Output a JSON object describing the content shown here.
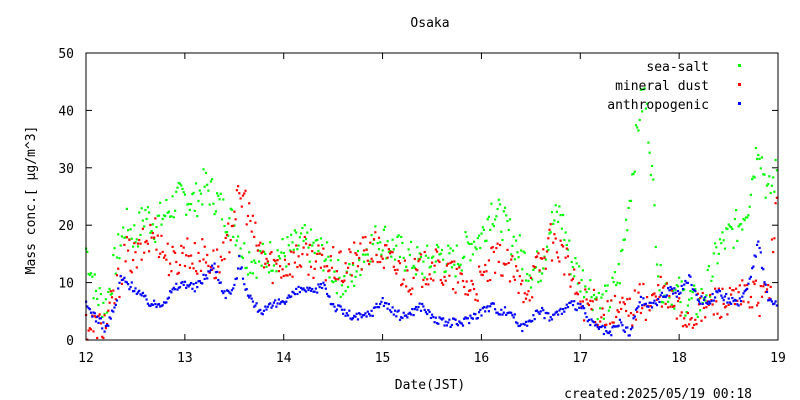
{
  "chart_data": {
    "type": "scatter",
    "title": "Osaka",
    "xlabel": "Date(JST)",
    "ylabel": "Mass conc.[ μg/m^3]",
    "footer": "created:2025/05/19 00:18",
    "xlim": [
      12,
      19
    ],
    "ylim": [
      0,
      50
    ],
    "x_ticks": [
      12,
      13,
      14,
      15,
      16,
      17,
      18,
      19
    ],
    "y_ticks": [
      0,
      10,
      20,
      30,
      40,
      50
    ],
    "grid": false,
    "legend_position": "top-right",
    "series": [
      {
        "name": "sea-salt",
        "color": "#00ff00",
        "x": [
          12.0,
          12.1,
          12.2,
          12.3,
          12.4,
          12.5,
          12.6,
          12.7,
          12.8,
          12.9,
          13.0,
          13.1,
          13.2,
          13.3,
          13.4,
          13.5,
          13.6,
          13.7,
          13.8,
          13.9,
          14.0,
          14.1,
          14.2,
          14.3,
          14.4,
          14.5,
          14.6,
          14.7,
          14.8,
          14.9,
          15.0,
          15.1,
          15.2,
          15.3,
          15.4,
          15.5,
          15.6,
          15.7,
          15.8,
          15.9,
          16.0,
          16.1,
          16.2,
          16.3,
          16.4,
          16.5,
          16.6,
          16.7,
          16.8,
          16.9,
          17.0,
          17.1,
          17.2,
          17.3,
          17.4,
          17.5,
          17.6,
          17.65,
          17.7,
          17.8,
          17.9,
          18.0,
          18.1,
          18.2,
          18.3,
          18.4,
          18.5,
          18.6,
          18.7,
          18.8,
          18.9,
          19.0
        ],
        "y": [
          16,
          8,
          6,
          14,
          20,
          18,
          22,
          20,
          22,
          24,
          25,
          24,
          27,
          25,
          22,
          20,
          15,
          14,
          14,
          15,
          15,
          16,
          17,
          16,
          15,
          12,
          10,
          11,
          15,
          17,
          18,
          16,
          15,
          14,
          13,
          14,
          15,
          13,
          15,
          17,
          18,
          23,
          21,
          18,
          15,
          12,
          13,
          20,
          22,
          14,
          11,
          9,
          6,
          7,
          12,
          25,
          40,
          43,
          35,
          10,
          9,
          8,
          7,
          6,
          10,
          16,
          18,
          20,
          24,
          35,
          25,
          30
        ]
      },
      {
        "name": "mineral dust",
        "color": "#ff0000",
        "x": [
          12.0,
          12.1,
          12.2,
          12.3,
          12.4,
          12.5,
          12.6,
          12.7,
          12.8,
          12.9,
          13.0,
          13.1,
          13.2,
          13.3,
          13.4,
          13.5,
          13.6,
          13.7,
          13.8,
          13.9,
          14.0,
          14.1,
          14.2,
          14.3,
          14.4,
          14.5,
          14.6,
          14.7,
          14.8,
          14.9,
          15.0,
          15.1,
          15.2,
          15.3,
          15.4,
          15.5,
          15.6,
          15.7,
          15.8,
          15.9,
          16.0,
          16.1,
          16.2,
          16.3,
          16.4,
          16.5,
          16.6,
          16.7,
          16.8,
          16.9,
          17.0,
          17.1,
          17.2,
          17.3,
          17.4,
          17.5,
          17.6,
          17.7,
          17.8,
          17.9,
          18.0,
          18.1,
          18.2,
          18.3,
          18.4,
          18.5,
          18.6,
          18.7,
          18.8,
          18.9,
          19.0
        ],
        "y": [
          3,
          2,
          3,
          8,
          15,
          14,
          17,
          19,
          15,
          13,
          16,
          14,
          15,
          13,
          14,
          23,
          25,
          18,
          14,
          13,
          13,
          14,
          15,
          14,
          13,
          13,
          12,
          14,
          15,
          16,
          15,
          13,
          12,
          11,
          12,
          13,
          12,
          11,
          10,
          9,
          10,
          13,
          14,
          12,
          9,
          10,
          14,
          17,
          16,
          11,
          7,
          6,
          5,
          4,
          5,
          5,
          7,
          6,
          8,
          7,
          5,
          4,
          5,
          6,
          7,
          6,
          7,
          8,
          7,
          8,
          25
        ]
      },
      {
        "name": "anthropogenic",
        "color": "#0000ff",
        "x": [
          12.0,
          12.1,
          12.2,
          12.3,
          12.35,
          12.4,
          12.5,
          12.6,
          12.7,
          12.8,
          12.9,
          13.0,
          13.1,
          13.2,
          13.3,
          13.4,
          13.5,
          13.55,
          13.6,
          13.7,
          13.8,
          13.9,
          14.0,
          14.1,
          14.2,
          14.3,
          14.4,
          14.5,
          14.6,
          14.7,
          14.8,
          14.9,
          15.0,
          15.1,
          15.2,
          15.3,
          15.4,
          15.5,
          15.6,
          15.7,
          15.8,
          15.9,
          16.0,
          16.1,
          16.2,
          16.3,
          16.4,
          16.5,
          16.6,
          16.7,
          16.8,
          16.9,
          17.0,
          17.1,
          17.2,
          17.3,
          17.4,
          17.5,
          17.6,
          17.7,
          17.8,
          17.9,
          18.0,
          18.1,
          18.2,
          18.3,
          18.4,
          18.5,
          18.6,
          18.7,
          18.8,
          18.9,
          19.0
        ],
        "y": [
          6,
          4,
          2,
          6,
          11,
          10,
          9,
          7,
          6,
          7,
          9,
          10,
          9,
          11,
          13,
          8,
          9,
          14,
          10,
          6,
          5,
          6,
          7,
          8,
          9,
          8,
          10,
          6,
          5,
          4,
          4,
          5,
          7,
          5,
          4,
          5,
          6,
          4,
          3,
          3,
          3,
          4,
          5,
          6,
          5,
          5,
          2,
          4,
          5,
          4,
          5,
          6,
          6,
          3,
          2,
          1,
          3,
          1,
          7,
          6,
          7,
          9,
          8,
          11,
          7,
          7,
          8,
          7,
          6,
          10,
          17,
          7,
          6
        ]
      }
    ]
  }
}
